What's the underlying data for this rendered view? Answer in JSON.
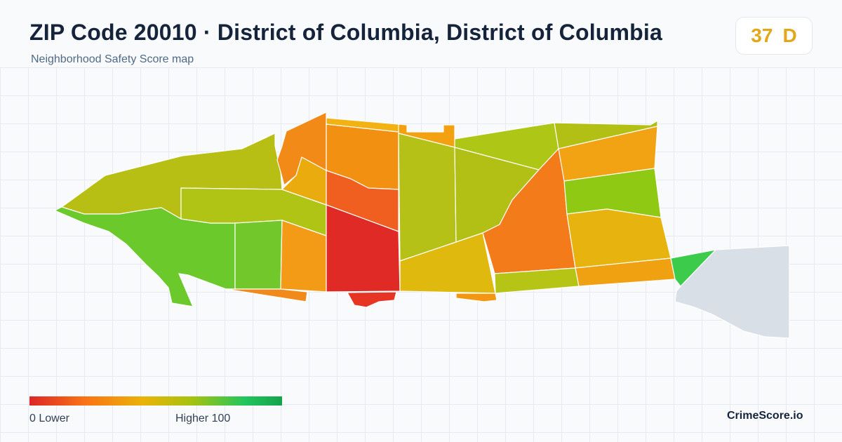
{
  "header": {
    "title": "ZIP Code 20010 · District of Columbia, District of Columbia",
    "subtitle": "Neighborhood Safety Score map"
  },
  "score": {
    "value": "37",
    "grade": "D",
    "color": "#e0a81a"
  },
  "map": {
    "regions": [
      {
        "id": "west-olive",
        "color": "#b8bf14"
      },
      {
        "id": "west-green",
        "color": "#6cc92c"
      },
      {
        "id": "mid-olive-band",
        "color": "#afc414"
      },
      {
        "id": "mid-green",
        "color": "#72c82a"
      },
      {
        "id": "north-orange-1",
        "color": "#f28a17"
      },
      {
        "id": "north-orange-2",
        "color": "#f29012"
      },
      {
        "id": "yellow-small",
        "color": "#eaab0f"
      },
      {
        "id": "red-orange",
        "color": "#f05e20"
      },
      {
        "id": "orange-left-south",
        "color": "#f39a16"
      },
      {
        "id": "red-core",
        "color": "#df2a26"
      },
      {
        "id": "red-south-tab",
        "color": "#e63524"
      },
      {
        "id": "orange-south-strip",
        "color": "#f18a1a"
      },
      {
        "id": "north-yellow-strip",
        "color": "#f2b211"
      },
      {
        "id": "north-orange-tab",
        "color": "#f3a011"
      },
      {
        "id": "olive-tall",
        "color": "#b5c116"
      },
      {
        "id": "olive-mid",
        "color": "#b2c015"
      },
      {
        "id": "olive-north-east",
        "color": "#aec615"
      },
      {
        "id": "olive-ne-small",
        "color": "#b2bf14"
      },
      {
        "id": "yellow-south",
        "color": "#dfb90e"
      },
      {
        "id": "orange-east",
        "color": "#f47b1a"
      },
      {
        "id": "olive-south",
        "color": "#b6c415"
      },
      {
        "id": "orange-south-small",
        "color": "#f39612"
      },
      {
        "id": "orange-ne",
        "color": "#f2a313"
      },
      {
        "id": "green-east",
        "color": "#8fc913"
      },
      {
        "id": "yellow-east",
        "color": "#e7b30f"
      },
      {
        "id": "orange-se",
        "color": "#f0a112"
      },
      {
        "id": "green-bright",
        "color": "#3ccb4a"
      },
      {
        "id": "no-data",
        "color": "#d8dfe6"
      }
    ]
  },
  "legend": {
    "low_label": "0  Lower",
    "high_label": "Higher  100"
  },
  "brand": "CrimeScore.io"
}
